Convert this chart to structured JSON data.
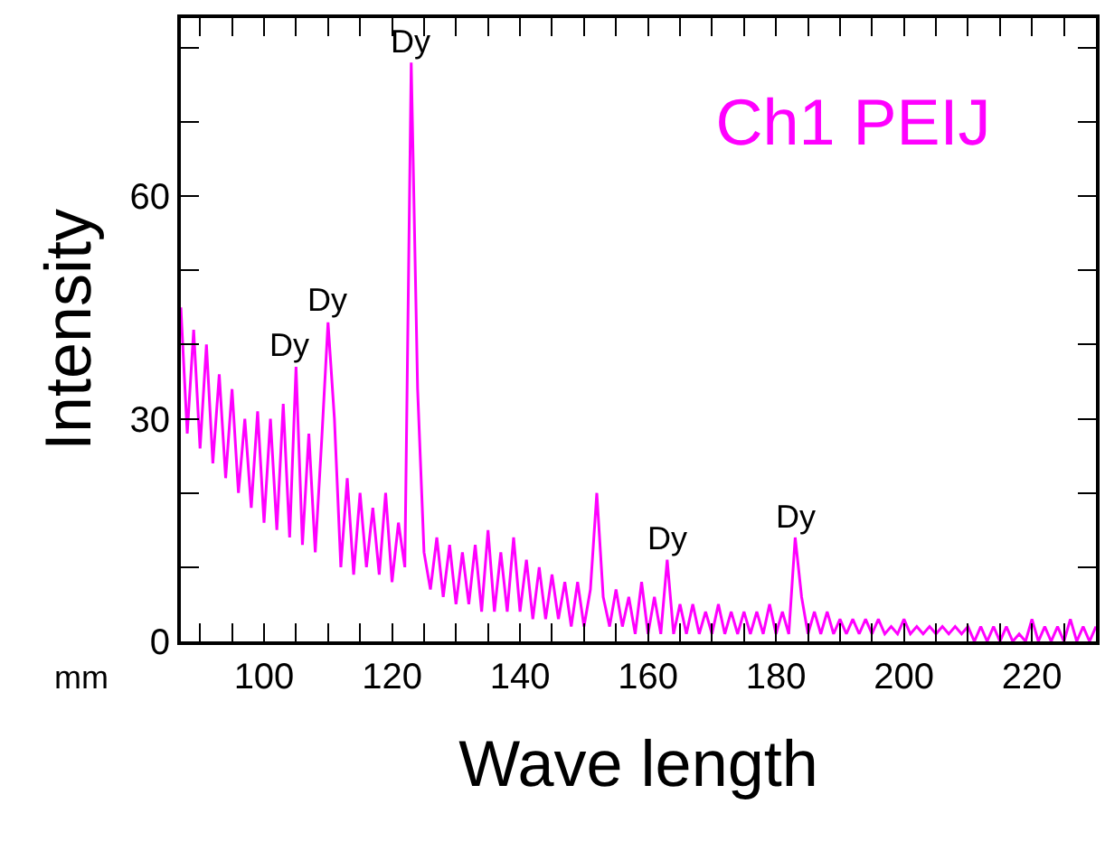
{
  "chart_data": {
    "type": "line",
    "title": "Ch1 PEIJ",
    "xlabel": "Wave length",
    "ylabel": "Intensity",
    "x": [
      87,
      88,
      89,
      90,
      91,
      92,
      93,
      94,
      95,
      96,
      97,
      98,
      99,
      100,
      101,
      102,
      103,
      104,
      105,
      106,
      107,
      108,
      109,
      110,
      111,
      112,
      113,
      114,
      115,
      116,
      117,
      118,
      119,
      120,
      121,
      122,
      123,
      124,
      125,
      126,
      127,
      128,
      129,
      130,
      131,
      132,
      133,
      134,
      135,
      136,
      137,
      138,
      139,
      140,
      141,
      142,
      143,
      144,
      145,
      146,
      147,
      148,
      149,
      150,
      151,
      152,
      153,
      154,
      155,
      156,
      157,
      158,
      159,
      160,
      161,
      162,
      163,
      164,
      165,
      166,
      167,
      168,
      169,
      170,
      171,
      172,
      173,
      174,
      175,
      176,
      177,
      178,
      179,
      180,
      181,
      182,
      183,
      184,
      185,
      186,
      187,
      188,
      189,
      190,
      191,
      192,
      193,
      194,
      195,
      196,
      197,
      198,
      199,
      200,
      201,
      202,
      203,
      204,
      205,
      206,
      207,
      208,
      209,
      210,
      211,
      212,
      213,
      214,
      215,
      216,
      217,
      218,
      219,
      220,
      221,
      222,
      223,
      224,
      225,
      226,
      227,
      228,
      229,
      230
    ],
    "series": [
      {
        "color": "#ff00ff",
        "values": [
          45,
          28,
          42,
          26,
          40,
          24,
          36,
          22,
          34,
          20,
          30,
          18,
          31,
          16,
          30,
          15,
          32,
          14,
          37,
          13,
          28,
          12,
          27,
          43,
          30,
          10,
          22,
          9,
          20,
          10,
          18,
          9,
          20,
          8,
          16,
          10,
          78,
          34,
          12,
          7,
          14,
          6,
          13,
          5,
          12,
          5,
          13,
          4,
          15,
          4,
          12,
          4,
          14,
          4,
          11,
          3,
          10,
          3,
          9,
          3,
          8,
          2,
          8,
          2,
          7,
          20,
          6,
          2,
          7,
          2,
          6,
          1,
          8,
          1,
          6,
          1,
          11,
          1,
          5,
          1,
          5,
          1,
          4,
          1,
          5,
          1,
          4,
          1,
          4,
          1,
          4,
          1,
          5,
          1,
          4,
          1,
          14,
          6,
          1,
          4,
          1,
          4,
          1,
          3,
          1,
          3,
          1,
          3,
          1,
          3,
          1,
          2,
          1,
          3,
          1,
          2,
          1,
          2,
          1,
          2,
          1,
          2,
          1,
          2,
          0,
          2,
          0,
          2,
          0,
          2,
          0,
          1,
          0,
          3,
          0,
          2,
          0,
          2,
          0,
          3,
          0,
          2,
          0,
          2
        ]
      }
    ],
    "xlim": [
      87,
      230
    ],
    "xticks": [
      {
        "value": 90,
        "label": null
      },
      {
        "value": 95,
        "label": null
      },
      100,
      {
        "value": 105,
        "label": null
      },
      {
        "value": 110,
        "label": null
      },
      {
        "value": 115,
        "label": null
      },
      120,
      {
        "value": 125,
        "label": null
      },
      {
        "value": 130,
        "label": null
      },
      {
        "value": 135,
        "label": null
      },
      140,
      {
        "value": 145,
        "label": null
      },
      {
        "value": 150,
        "label": null
      },
      {
        "value": 155,
        "label": null
      },
      160,
      {
        "value": 165,
        "label": null
      },
      {
        "value": 170,
        "label": null
      },
      {
        "value": 175,
        "label": null
      },
      180,
      {
        "value": 185,
        "label": null
      },
      {
        "value": 190,
        "label": null
      },
      {
        "value": 195,
        "label": null
      },
      200,
      {
        "value": 205,
        "label": null
      },
      {
        "value": 210,
        "label": null
      },
      {
        "value": 215,
        "label": null
      },
      220,
      {
        "value": 225,
        "label": null
      }
    ],
    "ylim": [
      0,
      84
    ],
    "yticks": [
      0,
      {
        "value": 10,
        "label": null
      },
      {
        "value": 20,
        "label": null
      },
      30,
      {
        "value": 40,
        "label": null
      },
      {
        "value": 50,
        "label": null
      },
      60,
      {
        "value": 70,
        "label": null
      },
      {
        "value": 80,
        "label": null
      }
    ],
    "annotations": [
      {
        "text": "Dy",
        "x": 104,
        "y": 37
      },
      {
        "text": "Dy",
        "x": 110,
        "y": 43
      },
      {
        "text": "Dy",
        "x": 123,
        "y": 78
      },
      {
        "text": "Dy",
        "x": 163,
        "y": 11
      },
      {
        "text": "Dy",
        "x": 183,
        "y": 14
      },
      "mm"
    ],
    "marker": "none",
    "line_style": "solid"
  }
}
